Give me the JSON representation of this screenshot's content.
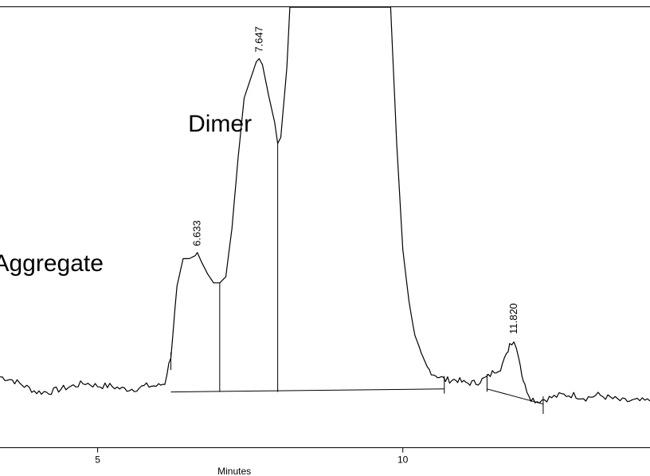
{
  "chart_data": {
    "type": "line",
    "title": "",
    "xlabel": "Minutes",
    "ylabel": "",
    "xlim": [
      3.4,
      14.05
    ],
    "ylim": [
      0,
      125
    ],
    "x_ticks": [
      5,
      10
    ],
    "x_tick_labels": [
      "5",
      "10"
    ],
    "grid": false,
    "legend": "none",
    "series": [
      {
        "values_x": [
          3.4,
          3.6,
          3.8,
          4.0,
          4.2,
          4.4,
          4.6,
          4.8,
          5.0,
          5.2,
          5.4,
          5.6,
          5.8,
          6.0,
          6.1,
          6.2,
          6.3,
          6.4,
          6.5,
          6.6,
          6.633,
          6.7,
          6.8,
          6.9,
          7.0,
          7.1,
          7.2,
          7.3,
          7.4,
          7.5,
          7.6,
          7.647,
          7.7,
          7.8,
          7.9,
          7.95,
          8.0,
          8.1,
          8.15,
          9.8,
          9.9,
          10.0,
          10.1,
          10.2,
          10.3,
          10.4,
          10.5,
          10.6,
          10.7,
          10.8,
          10.9,
          11.0,
          11.1,
          11.2,
          11.3,
          11.4,
          11.5,
          11.6,
          11.7,
          11.75,
          11.82,
          11.9,
          11.95,
          12.0,
          12.1,
          12.2,
          12.4,
          12.6,
          12.8,
          13.0,
          13.2,
          13.4,
          13.6,
          13.8,
          14.05
        ],
        "values_y": [
          3,
          2,
          0,
          -2,
          -2,
          -1,
          0,
          1,
          0,
          0,
          -1,
          -1,
          0,
          0,
          1,
          10,
          33,
          42,
          42,
          43,
          44,
          41,
          37,
          34,
          34,
          36,
          52,
          75,
          95,
          101,
          107,
          108,
          106,
          96,
          87,
          80,
          82,
          105,
          125,
          125,
          80,
          45,
          28,
          16,
          10,
          6,
          4,
          3,
          2,
          2,
          2,
          1,
          1,
          1,
          2,
          3,
          5,
          6,
          10,
          14,
          15,
          10,
          4,
          0,
          -4,
          -5,
          -4,
          -3,
          -3,
          -4,
          -3,
          -4,
          -5,
          -5,
          -5
        ]
      }
    ],
    "baseline_segments": [
      {
        "x": [
          6.2,
          10.68
        ],
        "y": [
          -2,
          -1
        ]
      },
      {
        "x": [
          11.38,
          12.3
        ],
        "y": [
          -1,
          -6
        ]
      }
    ],
    "peak_cut_times": [
      7.0,
      7.95
    ],
    "markers_at": [
      6.2,
      10.68,
      11.38,
      12.3
    ],
    "peak_labels": [
      {
        "x": 6.633,
        "y": 44,
        "text": "6.633"
      },
      {
        "x": 7.647,
        "y": 108,
        "text": "7.647"
      },
      {
        "x": 11.82,
        "y": 15,
        "text": "11.820"
      }
    ],
    "annotations": [
      {
        "x": 7.63,
        "y": 86,
        "text": "Dimer"
      },
      {
        "x": 5.2,
        "y": 40,
        "text": "Aggregate"
      }
    ]
  }
}
